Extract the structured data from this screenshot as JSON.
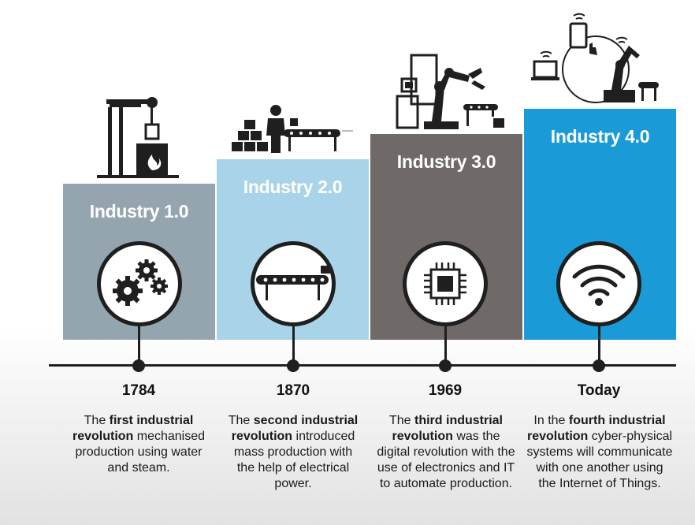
{
  "industries": [
    {
      "title": "Industry 1.0",
      "color": "#95a5af",
      "icon": "gears-icon",
      "year": "1784",
      "desc": {
        "pre": "The ",
        "bold": "first industrial revolution",
        "post": " mechanised production using water and steam."
      }
    },
    {
      "title": "Industry 2.0",
      "color": "#a9d3e8",
      "icon": "conveyor-belt-icon",
      "year": "1870",
      "desc": {
        "pre": "The ",
        "bold": "second industrial revolution",
        "post": " introduced mass production with the help of electrical power."
      }
    },
    {
      "title": "Industry 3.0",
      "color": "#6f6968",
      "icon": "microchip-icon",
      "year": "1969",
      "desc": {
        "pre": "The ",
        "bold": "third industrial revolution",
        "post": " was the digital revolution with the use of electronics and IT to automate production."
      }
    },
    {
      "title": "Industry 4.0",
      "color": "#1b9ad8",
      "icon": "wifi-icon",
      "year": "Today",
      "desc": {
        "pre": "In the ",
        "bold": "fourth industrial revolution",
        "post": " cyber-physical systems will communicate with one another using the Internet of Things."
      }
    }
  ]
}
